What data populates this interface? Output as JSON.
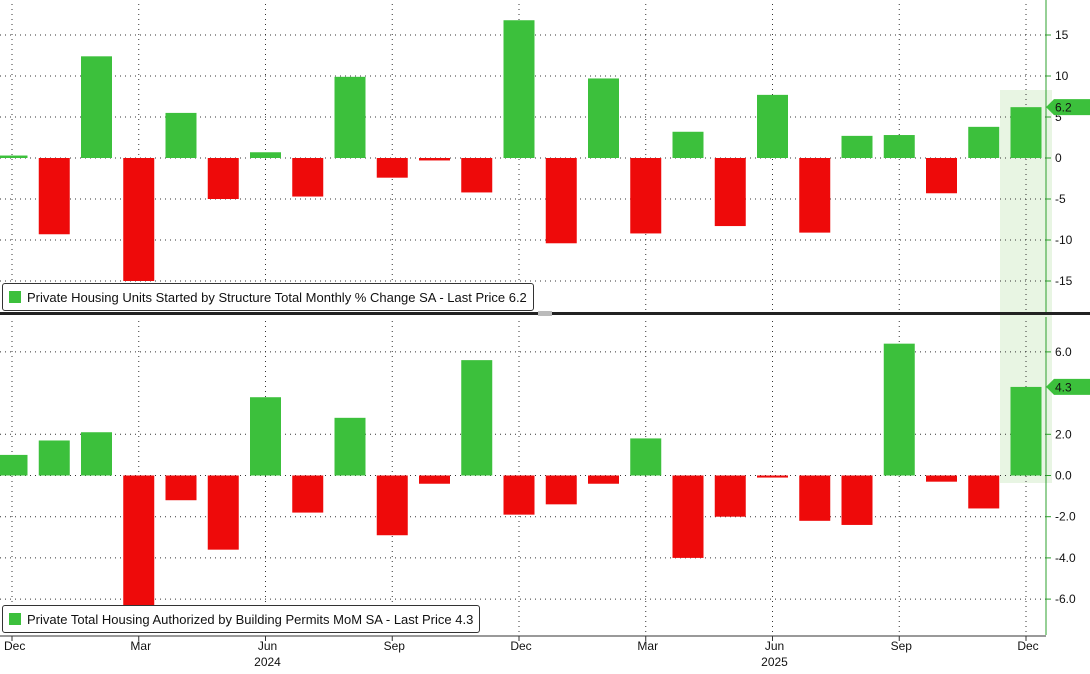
{
  "colors": {
    "positive": "#3cc03c",
    "negative": "#ee0a0a",
    "highlight": "#e8f5e3",
    "grid": "#333333",
    "axis_green": "#2ca02c",
    "tag_green": "#3cc03c"
  },
  "chart_data": [
    {
      "type": "bar",
      "title": "Private Housing Units Started by Structure Total Monthly % Change SA - Last Price 6.2",
      "legend": "Private Housing Units Started by Structure Total Monthly % Change SA - Last Price 6.2",
      "last_value_label": "6.2",
      "ylim": [
        -19,
        19
      ],
      "yticks": [
        15,
        10,
        5,
        0,
        -5,
        -10,
        -15
      ],
      "ytick_labels": [
        "15",
        "10",
        "5",
        "0",
        "-5",
        "-10",
        "-15"
      ],
      "grid": true,
      "legend_placement": "bottom-left",
      "categories": [
        "Dec 2023",
        "Jan 2024",
        "Feb 2024",
        "Mar 2024",
        "Apr 2024",
        "May 2024",
        "Jun 2024",
        "Jul 2024",
        "Aug 2024",
        "Sep 2024",
        "Oct 2024",
        "Nov 2024",
        "Dec 2024",
        "Jan 2025",
        "Feb 2025",
        "Mar 2025",
        "Apr 2025",
        "May 2025",
        "Jun 2025",
        "Jul 2025",
        "Aug 2025",
        "Sep 2025",
        "Oct 2025",
        "Nov 2025",
        "Dec 2025"
      ],
      "values": [
        0.3,
        -9.3,
        12.4,
        -15.0,
        5.5,
        -5.0,
        0.7,
        -4.7,
        9.9,
        -2.4,
        -0.3,
        -4.2,
        16.8,
        -10.4,
        9.7,
        -9.2,
        3.2,
        -8.3,
        7.7,
        -9.1,
        2.7,
        2.8,
        -4.3,
        3.8,
        6.2
      ]
    },
    {
      "type": "bar",
      "title": "Private Total Housing Authorized by Building Permits MoM SA - Last Price 4.3",
      "legend": "Private Total Housing Authorized by Building Permits MoM SA - Last Price 4.3",
      "last_value_label": "4.3",
      "ylim": [
        -7.5,
        7.5
      ],
      "yticks": [
        6.0,
        2.0,
        0.0,
        -2.0,
        -4.0,
        -6.0
      ],
      "ytick_labels": [
        "6.0",
        "2.0",
        "0.0",
        "-2.0",
        "-4.0",
        "-6.0"
      ],
      "grid": true,
      "legend_placement": "bottom-left",
      "categories": [
        "Dec 2023",
        "Jan 2024",
        "Feb 2024",
        "Mar 2024",
        "Apr 2024",
        "May 2024",
        "Jun 2024",
        "Jul 2024",
        "Aug 2024",
        "Sep 2024",
        "Oct 2024",
        "Nov 2024",
        "Dec 2024",
        "Jan 2025",
        "Feb 2025",
        "Mar 2025",
        "Apr 2025",
        "May 2025",
        "Jun 2025",
        "Jul 2025",
        "Aug 2025",
        "Sep 2025",
        "Oct 2025",
        "Nov 2025",
        "Dec 2025"
      ],
      "values": [
        1.0,
        1.7,
        2.1,
        -7.0,
        -1.2,
        -3.6,
        3.8,
        -1.8,
        2.8,
        -2.9,
        -0.4,
        5.6,
        -1.9,
        -1.4,
        -0.4,
        1.8,
        -4.0,
        -2.0,
        -0.1,
        -2.2,
        -2.4,
        6.4,
        -0.3,
        -1.6,
        4.3
      ]
    }
  ],
  "x_axis": {
    "month_labels": [
      {
        "label": "Dec",
        "index": 0
      },
      {
        "label": "Mar",
        "index": 3
      },
      {
        "label": "Jun",
        "index": 6
      },
      {
        "label": "Sep",
        "index": 9
      },
      {
        "label": "Dec",
        "index": 12
      },
      {
        "label": "Mar",
        "index": 15
      },
      {
        "label": "Jun",
        "index": 18
      },
      {
        "label": "Sep",
        "index": 21
      },
      {
        "label": "Dec",
        "index": 24
      }
    ],
    "year_labels": [
      {
        "label": "2024",
        "index": 6
      },
      {
        "label": "2025",
        "index": 18
      }
    ]
  }
}
